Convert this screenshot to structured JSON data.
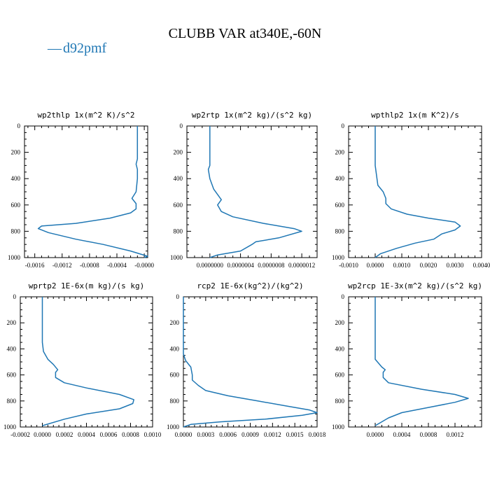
{
  "title": "CLUBB VAR at340E,-60N",
  "legend": {
    "label": "d92pmf",
    "marker": "—",
    "color": "#1f77b4"
  },
  "series_color": "#1f77b4",
  "chart_data": [
    {
      "type": "line",
      "name": "wp2thlp",
      "title": "wp2thlp  1x(m^2 K)/s^2",
      "xlim": [
        -0.00175,
        5e-05
      ],
      "xticks": [
        -0.0016,
        -0.0012,
        -0.0008,
        -0.0004,
        0.0
      ],
      "xtick_labels": [
        "-0.0016",
        "-0.0012",
        "-0.0008",
        "-0.0004",
        "-0.0000"
      ],
      "ylim": [
        1000,
        0
      ],
      "yticks": [
        0,
        200,
        400,
        600,
        800,
        1000
      ],
      "ytick_labels": [
        "0",
        "200",
        "400",
        "600",
        "800",
        "1000"
      ],
      "ylabel": "",
      "xlabel": "",
      "points": [
        [
          -0.0001,
          0
        ],
        [
          -0.0001,
          100
        ],
        [
          -0.0001,
          200
        ],
        [
          -0.0001,
          250
        ],
        [
          -0.00012,
          290
        ],
        [
          -0.0001,
          330
        ],
        [
          -0.0001,
          400
        ],
        [
          -0.00012,
          500
        ],
        [
          -0.00018,
          550
        ],
        [
          -0.00012,
          590
        ],
        [
          -0.00012,
          630
        ],
        [
          -0.0002,
          660
        ],
        [
          -0.0005,
          700
        ],
        [
          -0.001,
          740
        ],
        [
          -0.0015,
          760
        ],
        [
          -0.00155,
          780
        ],
        [
          -0.0014,
          810
        ],
        [
          -0.001,
          860
        ],
        [
          -0.0006,
          900
        ],
        [
          -0.0002,
          950
        ],
        [
          5e-05,
          990
        ],
        [
          0.0,
          1000
        ]
      ]
    },
    {
      "type": "line",
      "name": "wp2rtp",
      "title": "wp2rtp  1x(m^2 kg)/(s^2 kg)",
      "xlim": [
        -3e-07,
        1.4e-06
      ],
      "xticks": [
        0.0,
        4e-07,
        8e-07,
        1.2e-06
      ],
      "xtick_labels": [
        "0.0000000",
        "0.0000004",
        "0.0000008",
        "0.0000012"
      ],
      "ylim": [
        1000,
        0
      ],
      "yticks": [
        0,
        200,
        400,
        600,
        800,
        1000
      ],
      "ytick_labels": [
        "0",
        "200",
        "400",
        "600",
        "800",
        "1000"
      ],
      "ylabel": "",
      "xlabel": "",
      "points": [
        [
          0.0,
          0
        ],
        [
          0.0,
          100
        ],
        [
          0.0,
          200
        ],
        [
          0.0,
          300
        ],
        [
          -2e-08,
          330
        ],
        [
          0.0,
          400
        ],
        [
          5e-08,
          480
        ],
        [
          1e-07,
          520
        ],
        [
          1.5e-07,
          560
        ],
        [
          1e-07,
          600
        ],
        [
          1.5e-07,
          650
        ],
        [
          3e-07,
          690
        ],
        [
          7e-07,
          740
        ],
        [
          1.1e-06,
          780
        ],
        [
          1.2e-06,
          800
        ],
        [
          9e-07,
          850
        ],
        [
          6e-07,
          880
        ],
        [
          5.5e-07,
          900
        ],
        [
          4e-07,
          950
        ],
        [
          1e-07,
          980
        ],
        [
          0.0,
          1000
        ]
      ]
    },
    {
      "type": "line",
      "name": "wpthlp2",
      "title": "wpthlp2  1x(m K^2)/s",
      "xlim": [
        -0.001,
        0.004
      ],
      "xticks": [
        -0.001,
        0.0,
        0.001,
        0.002,
        0.003,
        0.004
      ],
      "xtick_labels": [
        "-0.0010",
        "0.0000",
        "0.0010",
        "0.0020",
        "0.0030",
        "0.0040"
      ],
      "ylim": [
        1000,
        0
      ],
      "yticks": [
        0,
        200,
        400,
        600,
        800,
        1000
      ],
      "ytick_labels": [
        "0",
        "200",
        "400",
        "600",
        "800",
        "1000"
      ],
      "ylabel": "",
      "xlabel": "",
      "points": [
        [
          0.0,
          0
        ],
        [
          0.0,
          100
        ],
        [
          0.0,
          200
        ],
        [
          0.0,
          300
        ],
        [
          0.0001,
          450
        ],
        [
          0.0003,
          500
        ],
        [
          0.0004,
          550
        ],
        [
          0.0004,
          590
        ],
        [
          0.0006,
          630
        ],
        [
          0.0012,
          670
        ],
        [
          0.002,
          700
        ],
        [
          0.003,
          730
        ],
        [
          0.0032,
          760
        ],
        [
          0.003,
          790
        ],
        [
          0.0025,
          820
        ],
        [
          0.0022,
          860
        ],
        [
          0.0015,
          890
        ],
        [
          0.0008,
          930
        ],
        [
          0.0002,
          970
        ],
        [
          0.0,
          1000
        ]
      ]
    },
    {
      "type": "line",
      "name": "wprtp2",
      "title": "wprtp2  1E-6x(m kg)/(s kg)",
      "xlim": [
        -0.0002,
        0.001
      ],
      "xticks": [
        -0.0002,
        0.0,
        0.0002,
        0.0004,
        0.0006,
        0.0008,
        0.001
      ],
      "xtick_labels": [
        "-0.0002",
        "0.0000",
        "0.0002",
        "0.0004",
        "0.0006",
        "0.0008",
        "0.0010"
      ],
      "ylim": [
        1000,
        0
      ],
      "yticks": [
        0,
        200,
        400,
        600,
        800,
        1000
      ],
      "ytick_labels": [
        "0",
        "200",
        "400",
        "600",
        "800",
        "1000"
      ],
      "ylabel": "",
      "xlabel": "",
      "points": [
        [
          0.0,
          0
        ],
        [
          0.0,
          200
        ],
        [
          0.0,
          350
        ],
        [
          1e-05,
          420
        ],
        [
          5e-05,
          480
        ],
        [
          0.0001,
          520
        ],
        [
          0.00014,
          560
        ],
        [
          0.00012,
          580
        ],
        [
          0.00012,
          620
        ],
        [
          0.0002,
          660
        ],
        [
          0.0004,
          700
        ],
        [
          0.0007,
          750
        ],
        [
          0.00083,
          790
        ],
        [
          0.00082,
          820
        ],
        [
          0.0007,
          860
        ],
        [
          0.0004,
          900
        ],
        [
          0.0002,
          940
        ],
        [
          0.0,
          990
        ]
      ]
    },
    {
      "type": "line",
      "name": "rcp2",
      "title": "rcp2  1E-6x(kg^2)/(kg^2)",
      "xlim": [
        0.0,
        0.0018
      ],
      "xticks": [
        0.0,
        0.0003,
        0.0006,
        0.0009,
        0.0012,
        0.0015,
        0.0018
      ],
      "xtick_labels": [
        "0.0000",
        "0.0003",
        "0.0006",
        "0.0009",
        "0.0012",
        "0.0015",
        "0.0018"
      ],
      "ylim": [
        1000,
        0
      ],
      "yticks": [
        0,
        200,
        400,
        600,
        800,
        1000
      ],
      "ytick_labels": [
        "0",
        "200",
        "400",
        "600",
        "800",
        "1000"
      ],
      "ylabel": "",
      "xlabel": "",
      "points": [
        [
          0.0,
          0
        ],
        [
          0.0,
          440
        ],
        [
          3e-05,
          490
        ],
        [
          0.0001,
          540
        ],
        [
          0.00012,
          600
        ],
        [
          0.00012,
          640
        ],
        [
          0.0002,
          680
        ],
        [
          0.0003,
          720
        ],
        [
          0.0006,
          760
        ],
        [
          0.001,
          800
        ],
        [
          0.0014,
          840
        ],
        [
          0.0017,
          870
        ],
        [
          0.0018,
          890
        ],
        [
          0.0016,
          910
        ],
        [
          0.0011,
          940
        ],
        [
          0.0005,
          960
        ],
        [
          0.0001,
          980
        ],
        [
          0.0,
          1000
        ]
      ]
    },
    {
      "type": "line",
      "name": "wp2rcp",
      "title": "wp2rcp  1E-3x(m^2 kg)/(s^2 kg)",
      "xlim": [
        -0.0004,
        0.0016
      ],
      "xticks": [
        0.0,
        0.0004,
        0.0008,
        0.0012
      ],
      "xtick_labels": [
        "0.0000",
        "0.0004",
        "0.0008",
        "0.0012"
      ],
      "ylim": [
        1000,
        0
      ],
      "yticks": [
        0,
        200,
        400,
        600,
        800,
        1000
      ],
      "ytick_labels": [
        "0",
        "200",
        "400",
        "600",
        "800",
        "1000"
      ],
      "ylabel": "",
      "xlabel": "",
      "points": [
        [
          0.0,
          0
        ],
        [
          0.0,
          300
        ],
        [
          0.0,
          480
        ],
        [
          0.0001,
          540
        ],
        [
          0.00015,
          560
        ],
        [
          0.00012,
          580
        ],
        [
          0.00012,
          620
        ],
        [
          0.0002,
          660
        ],
        [
          0.0007,
          710
        ],
        [
          0.0012,
          750
        ],
        [
          0.0014,
          780
        ],
        [
          0.0012,
          810
        ],
        [
          0.0008,
          850
        ],
        [
          0.0004,
          890
        ],
        [
          0.0002,
          930
        ],
        [
          0.0,
          990
        ]
      ]
    }
  ]
}
